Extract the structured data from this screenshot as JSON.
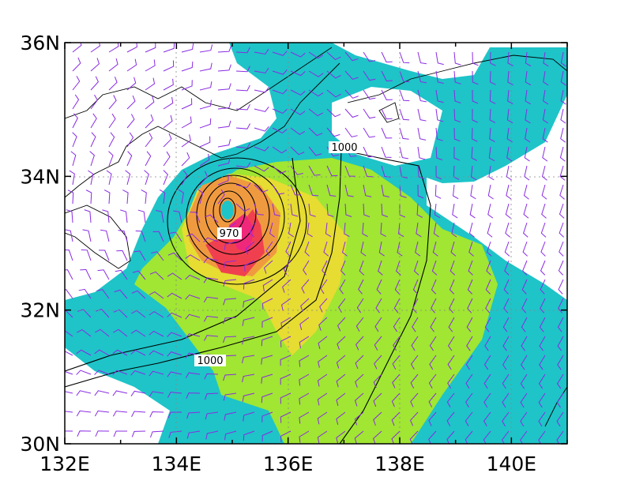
{
  "map": {
    "yticks": [
      "36N",
      "34N",
      "32N",
      "30N"
    ],
    "xticks": [
      "132E",
      "134E",
      "136E",
      "138E",
      "140E"
    ],
    "contour_labels": [
      "1000",
      "970",
      "1000"
    ]
  }
}
